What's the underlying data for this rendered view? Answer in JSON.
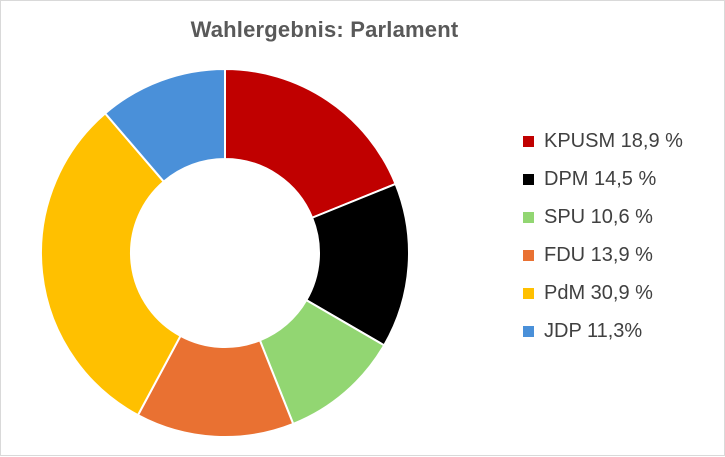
{
  "chart_data": {
    "type": "pie",
    "donut": true,
    "title": "Wahlergebnis: Parlament",
    "legend_position": "right",
    "series": [
      {
        "name": "KPUSM",
        "label": "KPUSM 18,9 %",
        "value": 18.9,
        "color": "#C00000"
      },
      {
        "name": "DPM",
        "label": "DPM 14,5 %",
        "value": 14.5,
        "color": "#000000"
      },
      {
        "name": "SPU",
        "label": "SPU 10,6 %",
        "value": 10.6,
        "color": "#92D672"
      },
      {
        "name": "FDU",
        "label": "FDU 13,9 %",
        "value": 13.9,
        "color": "#E97132"
      },
      {
        "name": "PdM",
        "label": "PdM 30,9 %",
        "value": 30.9,
        "color": "#FFC000"
      },
      {
        "name": "JDP",
        "label": "JDP 11,3%",
        "value": 11.3,
        "color": "#4A90D9"
      }
    ]
  }
}
